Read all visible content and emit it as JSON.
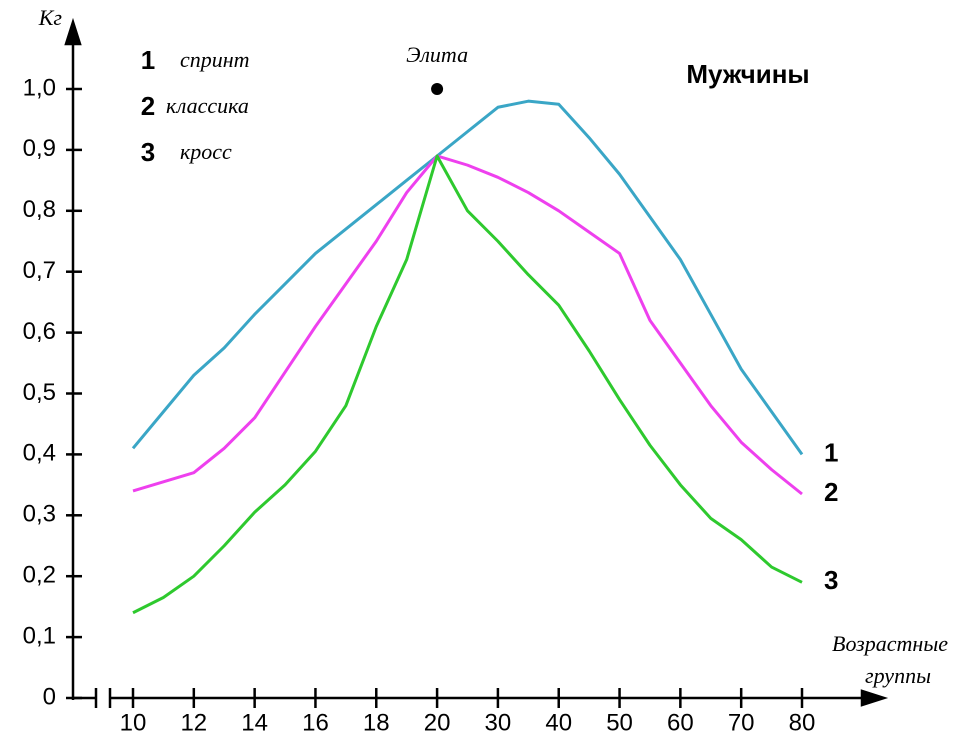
{
  "chart_data": {
    "type": "line",
    "subtitle": "Мужчины",
    "ylabel": "Кг",
    "xlabel": [
      "Возрастные",
      "группы"
    ],
    "categories": [
      10,
      null,
      12,
      null,
      14,
      null,
      16,
      null,
      18,
      null,
      20,
      null,
      30,
      null,
      40,
      null,
      50,
      null,
      60,
      null,
      70,
      null,
      80
    ],
    "ylim": [
      0,
      1.0
    ],
    "yticks": [
      0,
      {
        "value": 0.1,
        "label": "0,1"
      },
      {
        "value": 0.2,
        "label": "0,2"
      },
      {
        "value": 0.3,
        "label": "0,3"
      },
      {
        "value": 0.4,
        "label": "0,4"
      },
      {
        "value": 0.5,
        "label": "0,5"
      },
      {
        "value": 0.6,
        "label": "0,6"
      },
      {
        "value": 0.7,
        "label": "0,7"
      },
      {
        "value": 0.8,
        "label": "0,8"
      },
      {
        "value": 0.9,
        "label": "0,9"
      },
      {
        "value": 1.0,
        "label": "1,0"
      }
    ],
    "series": [
      {
        "name": "спринт",
        "label": "1",
        "color": "#3aa6c6",
        "values": [
          0.41,
          0.47,
          0.53,
          0.575,
          0.63,
          0.68,
          0.73,
          0.77,
          0.81,
          0.85,
          0.89,
          0.93,
          0.97,
          0.98,
          0.975,
          0.92,
          0.86,
          0.79,
          0.72,
          0.63,
          0.54,
          0.47,
          0.4
        ]
      },
      {
        "name": "классика",
        "label": "2",
        "color": "#ee40ee",
        "values": [
          0.34,
          0.355,
          0.37,
          0.41,
          0.46,
          0.535,
          0.61,
          0.68,
          0.75,
          0.83,
          0.89,
          0.875,
          0.855,
          0.83,
          0.8,
          0.765,
          0.73,
          0.62,
          0.55,
          0.48,
          0.42,
          0.375,
          0.335
        ]
      },
      {
        "name": "кросс",
        "label": "3",
        "color": "#2ec92e",
        "values": [
          0.14,
          0.165,
          0.2,
          0.25,
          0.305,
          0.35,
          0.405,
          0.48,
          0.61,
          0.72,
          0.89,
          0.8,
          0.75,
          0.695,
          0.645,
          0.57,
          0.49,
          0.415,
          0.35,
          0.295,
          0.26,
          0.215,
          0.19
        ]
      }
    ],
    "elite": {
      "label": "Элита",
      "x": 20,
      "value": 1.0
    }
  }
}
